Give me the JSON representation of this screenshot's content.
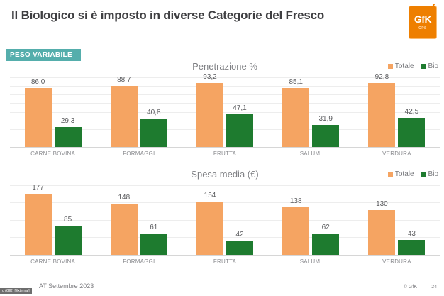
{
  "header": {
    "title": "Il Biologico si è imposto in diverse Categorie del Fresco",
    "logo": {
      "text": "GfK",
      "subtext": "CPS"
    }
  },
  "badge": {
    "label": "PESO VARIABILE"
  },
  "chart_data": [
    {
      "type": "bar",
      "title": "Penetrazione %",
      "categories": [
        "CARNE BOVINA",
        "FORMAGGI",
        "FRUTTA",
        "SALUMI",
        "VERDURA"
      ],
      "series": [
        {
          "name": "Totale",
          "color": "#F5A462",
          "values": [
            86.0,
            88.7,
            93.2,
            85.1,
            92.8
          ],
          "labels": [
            "86,0",
            "88,7",
            "93,2",
            "85,1",
            "92,8"
          ]
        },
        {
          "name": "Bio",
          "color": "#1E7B2F",
          "values": [
            29.3,
            40.8,
            47.1,
            31.9,
            42.5
          ],
          "labels": [
            "29,3",
            "40,8",
            "47,1",
            "31,9",
            "42,5"
          ]
        }
      ],
      "ylim": [
        0,
        100
      ],
      "grid": true,
      "grid_divisions": 8,
      "legend_position": "top-right"
    },
    {
      "type": "bar",
      "title": "Spesa media (€)",
      "categories": [
        "CARNE BOVINA",
        "FORMAGGI",
        "FRUTTA",
        "SALUMI",
        "VERDURA"
      ],
      "series": [
        {
          "name": "Totale",
          "color": "#F5A462",
          "values": [
            177,
            148,
            154,
            138,
            130
          ],
          "labels": [
            "177",
            "148",
            "154",
            "138",
            "130"
          ]
        },
        {
          "name": "Bio",
          "color": "#1E7B2F",
          "values": [
            85,
            61,
            42,
            62,
            43
          ],
          "labels": [
            "85",
            "61",
            "42",
            "62",
            "43"
          ]
        }
      ],
      "ylim": [
        0,
        200
      ],
      "grid": true,
      "grid_divisions": 4,
      "legend_position": "top-right"
    }
  ],
  "footer": {
    "classification": "o (GfK) [External]",
    "date": "AT Settembre 2023",
    "copyright": "© GfK",
    "page": "24"
  },
  "colors": {
    "totale": "#F5A462",
    "bio": "#1E7B2F",
    "badge_teal": "#55AEAC",
    "logo_orange": "#EE7F00",
    "title_text": "#3F3F42"
  }
}
